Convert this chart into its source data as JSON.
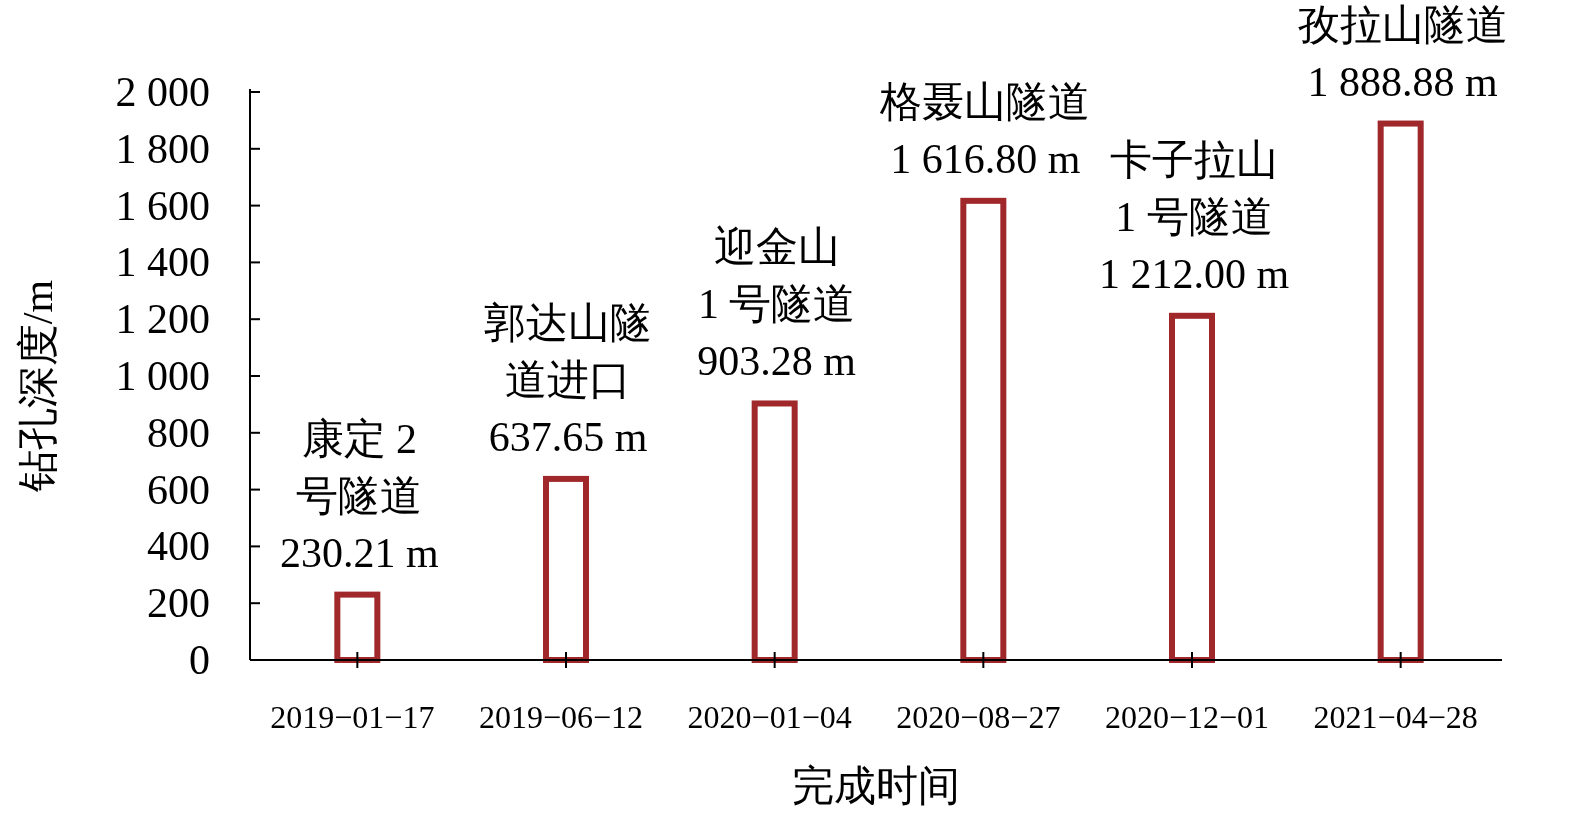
{
  "chart_data": {
    "type": "bar",
    "xlabel": "完成时间",
    "ylabel": "钻孔深度/m",
    "categories": [
      "2019−01−17",
      "2019−06−12",
      "2020−01−04",
      "2020−08−27",
      "2020−12−01",
      "2021−04−28"
    ],
    "values": [
      230.21,
      637.65,
      903.28,
      1616.8,
      1212.0,
      1888.88
    ],
    "value_labels": [
      "康定 2\n号隧道\n230.21 m",
      "郭达山隧道进口\n637.65 m",
      "迎金山\n1 号隧道\n903.28 m",
      "格聂山隧道\n1 616.80 m",
      "卡子拉山\n1 号隧道\n1 212.00 m",
      "孜拉山隧道\n1 888.88 m"
    ],
    "color": "#a0282b",
    "ylim": [
      0,
      2000
    ],
    "yticks": [
      0,
      200,
      400,
      600,
      800,
      {
        "value": 1000,
        "label": "1 000"
      },
      {
        "value": 1200,
        "label": "1 200"
      },
      {
        "value": 1400,
        "label": "1 400"
      },
      {
        "value": 1600,
        "label": "1 600"
      },
      {
        "value": 1800,
        "label": "1 800"
      },
      {
        "value": 2000,
        "label": "2 000"
      }
    ],
    "grid": false
  }
}
